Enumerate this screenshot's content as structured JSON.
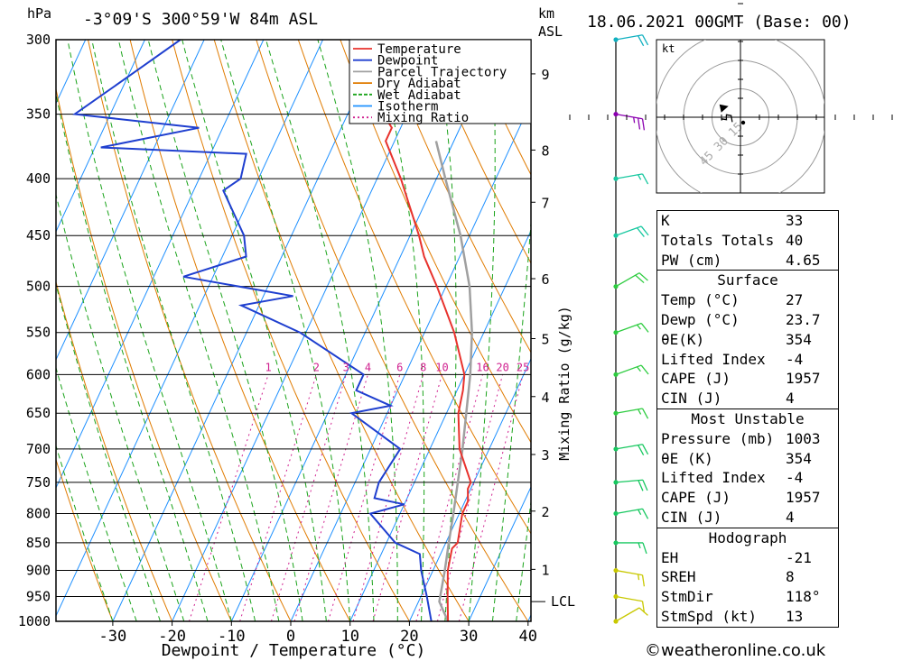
{
  "header": {
    "hpa_label": "hPa",
    "location": "-3°09'S  300°59'W  84m  ASL",
    "km_label": "km",
    "asl_label": "ASL",
    "datetime": "18.06.2021  00GMT  (Base: 00)"
  },
  "legend": [
    {
      "label": "Temperature",
      "color": "#e8322d",
      "style": "solid"
    },
    {
      "label": "Dewpoint",
      "color": "#1f3fcf",
      "style": "solid"
    },
    {
      "label": "Parcel Trajectory",
      "color": "#a0a0a0",
      "style": "solid"
    },
    {
      "label": "Dry Adiabat",
      "color": "#e07b00",
      "style": "solid"
    },
    {
      "label": "Wet Adiabat",
      "color": "#1aa31a",
      "style": "dashed"
    },
    {
      "label": "Isotherm",
      "color": "#1e90ff",
      "style": "solid"
    },
    {
      "label": "Mixing Ratio",
      "color": "#d0208f",
      "style": "dotted"
    }
  ],
  "chart_data": {
    "type": "skew-t",
    "xlabel": "Dewpoint / Temperature (°C)",
    "x_ticks": [
      -30,
      -20,
      -10,
      0,
      10,
      20,
      30,
      40
    ],
    "y_label": "hPa",
    "pressure_levels": [
      300,
      350,
      400,
      450,
      500,
      550,
      600,
      650,
      700,
      750,
      800,
      850,
      900,
      950,
      1000
    ],
    "km_ticks": [
      {
        "km": 9,
        "p": 322
      },
      {
        "km": 8,
        "p": 377
      },
      {
        "km": 7,
        "p": 420
      },
      {
        "km": 6,
        "p": 492
      },
      {
        "km": 5,
        "p": 557
      },
      {
        "km": 4,
        "p": 628
      },
      {
        "km": 3,
        "p": 708
      },
      {
        "km": 2,
        "p": 796
      },
      {
        "km": 1,
        "p": 898
      }
    ],
    "lcl_label": "LCL",
    "lcl_pressure": 960,
    "mixing_ratio_axis_label": "Mixing Ratio (g/kg)",
    "mixing_ratios": [
      "1",
      "2",
      "3",
      "4",
      "6",
      "8",
      "10",
      "16",
      "20",
      "25"
    ],
    "mixing_ratio_values": [
      1,
      2,
      3,
      4,
      6,
      8,
      10,
      16,
      20,
      25
    ],
    "temperature": [
      {
        "p": 1000,
        "t": 26.5
      },
      {
        "p": 950,
        "t": 24.5
      },
      {
        "p": 900,
        "t": 22.5
      },
      {
        "p": 860,
        "t": 21.5
      },
      {
        "p": 850,
        "t": 22.0
      },
      {
        "p": 800,
        "t": 20.5
      },
      {
        "p": 780,
        "t": 20.5
      },
      {
        "p": 760,
        "t": 19.5
      },
      {
        "p": 750,
        "t": 19.5
      },
      {
        "p": 700,
        "t": 15.0
      },
      {
        "p": 650,
        "t": 12.0
      },
      {
        "p": 620,
        "t": 11.0
      },
      {
        "p": 600,
        "t": 10.0
      },
      {
        "p": 550,
        "t": 5.0
      },
      {
        "p": 500,
        "t": -1.5
      },
      {
        "p": 470,
        "t": -6.0
      },
      {
        "p": 450,
        "t": -8.5
      },
      {
        "p": 400,
        "t": -16.0
      },
      {
        "p": 370,
        "t": -21.5
      },
      {
        "p": 360,
        "t": -21.5
      },
      {
        "p": 350,
        "t": -24.0
      },
      {
        "p": 300,
        "t": -34.0
      }
    ],
    "dewpoint": [
      {
        "p": 1000,
        "t": 23.7
      },
      {
        "p": 950,
        "t": 21.0
      },
      {
        "p": 900,
        "t": 18.0
      },
      {
        "p": 870,
        "t": 16.5
      },
      {
        "p": 850,
        "t": 11.5
      },
      {
        "p": 800,
        "t": 5.0
      },
      {
        "p": 785,
        "t": 10.0
      },
      {
        "p": 775,
        "t": 4.5
      },
      {
        "p": 750,
        "t": 4.0
      },
      {
        "p": 700,
        "t": 5.0
      },
      {
        "p": 650,
        "t": -6.0
      },
      {
        "p": 640,
        "t": 0.0
      },
      {
        "p": 620,
        "t": -7.0
      },
      {
        "p": 600,
        "t": -7.0
      },
      {
        "p": 550,
        "t": -21.0
      },
      {
        "p": 520,
        "t": -33.0
      },
      {
        "p": 510,
        "t": -25.0
      },
      {
        "p": 490,
        "t": -45.0
      },
      {
        "p": 470,
        "t": -36.0
      },
      {
        "p": 450,
        "t": -38.0
      },
      {
        "p": 410,
        "t": -45.0
      },
      {
        "p": 400,
        "t": -43.0
      },
      {
        "p": 380,
        "t": -44.0
      },
      {
        "p": 375,
        "t": -69.0
      },
      {
        "p": 360,
        "t": -54.0
      },
      {
        "p": 350,
        "t": -76.0
      },
      {
        "p": 320,
        "t": -69.0
      },
      {
        "p": 300,
        "t": -64.0
      }
    ],
    "parcel": [
      {
        "p": 1000,
        "t": 26.5
      },
      {
        "p": 960,
        "t": 23.5
      },
      {
        "p": 900,
        "t": 22.0
      },
      {
        "p": 850,
        "t": 20.5
      },
      {
        "p": 800,
        "t": 19.0
      },
      {
        "p": 700,
        "t": 15.5
      },
      {
        "p": 600,
        "t": 11.0
      },
      {
        "p": 550,
        "t": 8.0
      },
      {
        "p": 500,
        "t": 4.0
      },
      {
        "p": 450,
        "t": -1.5
      },
      {
        "p": 400,
        "t": -8.5
      },
      {
        "p": 370,
        "t": -13.0
      }
    ],
    "wind_barbs": [
      {
        "p": 1000,
        "dir": 60,
        "kt": 10
      },
      {
        "p": 950,
        "dir": 100,
        "kt": 10
      },
      {
        "p": 900,
        "dir": 100,
        "kt": 15
      },
      {
        "p": 850,
        "dir": 90,
        "kt": 15
      },
      {
        "p": 800,
        "dir": 80,
        "kt": 15
      },
      {
        "p": 750,
        "dir": 85,
        "kt": 20
      },
      {
        "p": 700,
        "dir": 80,
        "kt": 20
      },
      {
        "p": 650,
        "dir": 80,
        "kt": 15
      },
      {
        "p": 600,
        "dir": 70,
        "kt": 15
      },
      {
        "p": 550,
        "dir": 70,
        "kt": 15
      },
      {
        "p": 500,
        "dir": 60,
        "kt": 20
      },
      {
        "p": 450,
        "dir": 70,
        "kt": 20
      },
      {
        "p": 400,
        "dir": 80,
        "kt": 15
      },
      {
        "p": 350,
        "dir": 100,
        "kt": 25
      },
      {
        "p": 300,
        "dir": 80,
        "kt": 20
      }
    ],
    "hodograph": {
      "unit_label": "kt",
      "ring_labels": [
        "15",
        "30",
        "45"
      ],
      "ring_values": [
        15,
        30,
        45
      ]
    }
  },
  "indices": {
    "k_label": "K",
    "k_value": "33",
    "tt_label": "Totals Totals",
    "tt_value": "40",
    "pw_label": "PW (cm)",
    "pw_value": "4.65",
    "surface_header": "Surface",
    "s_temp_label": "Temp (°C)",
    "s_temp_value": "27",
    "s_dewp_label": "Dewp (°C)",
    "s_dewp_value": "23.7",
    "s_theta_label": "θE(K)",
    "s_theta_value": "354",
    "s_li_label": "Lifted Index",
    "s_li_value": "-4",
    "s_cape_label": "CAPE (J)",
    "s_cape_value": "1957",
    "s_cin_label": "CIN (J)",
    "s_cin_value": "4",
    "mu_header": "Most Unstable",
    "mu_pres_label": "Pressure (mb)",
    "mu_pres_value": "1003",
    "mu_theta_label": "θE (K)",
    "mu_theta_value": "354",
    "mu_li_label": "Lifted Index",
    "mu_li_value": "-4",
    "mu_cape_label": "CAPE (J)",
    "mu_cape_value": "1957",
    "mu_cin_label": "CIN (J)",
    "mu_cin_value": "4",
    "hodo_header": "Hodograph",
    "eh_label": "EH",
    "eh_value": "-21",
    "sreh_label": "SREH",
    "sreh_value": "8",
    "stmdir_label": "StmDir",
    "stmdir_value": "118°",
    "stmspd_label": "StmSpd (kt)",
    "stmspd_value": "13"
  },
  "credit": "©weatheronline.co.uk"
}
